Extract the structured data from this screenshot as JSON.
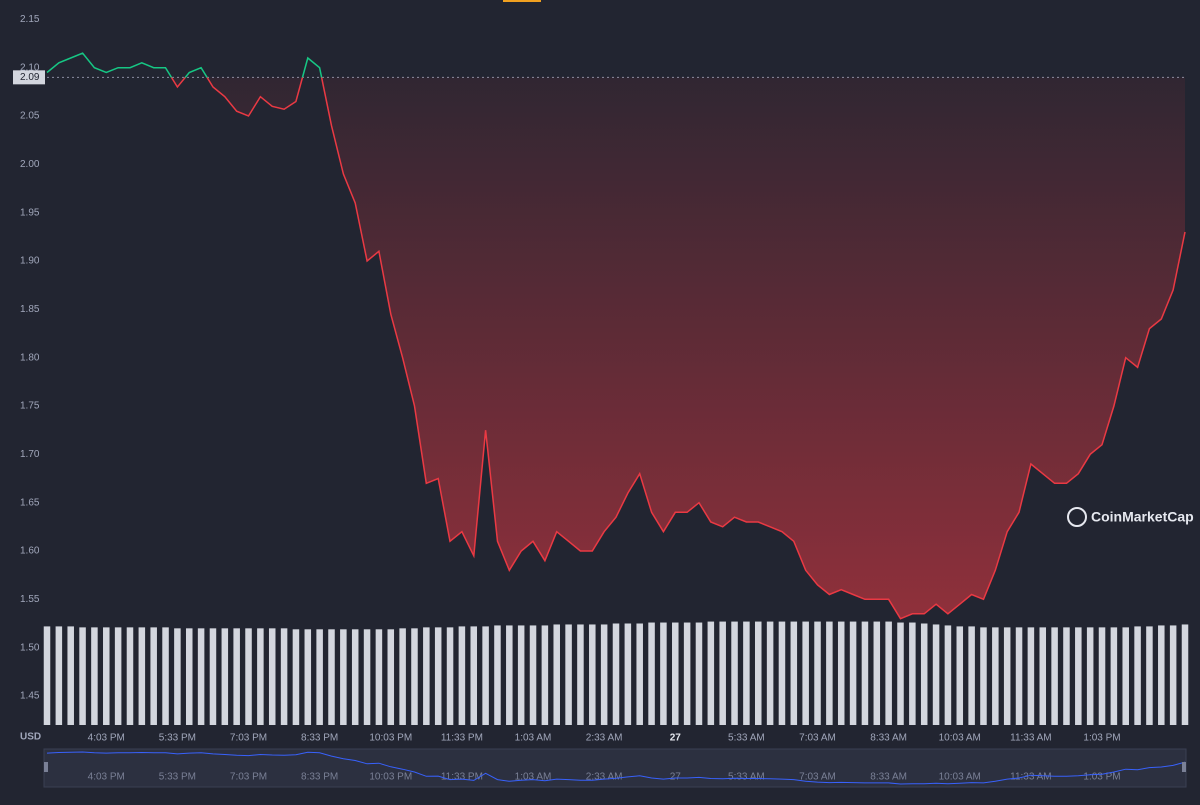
{
  "chart_data": {
    "type": "line",
    "categories": [
      null,
      null,
      null,
      null,
      null,
      "4:03 PM",
      null,
      null,
      null,
      null,
      null,
      "5:33 PM",
      null,
      null,
      null,
      null,
      null,
      "7:03 PM",
      null,
      null,
      null,
      null,
      null,
      "8:33 PM",
      null,
      null,
      null,
      null,
      null,
      "10:03 PM",
      null,
      null,
      null,
      null,
      null,
      "11:33 PM",
      null,
      null,
      null,
      null,
      null,
      "1:03 AM",
      null,
      null,
      null,
      null,
      null,
      "2:33 AM",
      null,
      null,
      null,
      null,
      null,
      "27",
      null,
      null,
      null,
      null,
      null,
      "5:33 AM",
      null,
      null,
      null,
      null,
      null,
      "7:03 AM",
      null,
      null,
      null,
      null,
      null,
      "8:33 AM",
      null,
      null,
      null,
      null,
      null,
      "10:03 AM",
      null,
      null,
      null,
      null,
      null,
      "11:33 AM",
      null,
      null,
      null,
      null,
      null,
      "1:03 PM",
      null,
      null,
      null,
      null,
      null,
      null,
      null
    ],
    "values": [
      2.095,
      2.105,
      2.11,
      2.115,
      2.1,
      2.095,
      2.1,
      2.1,
      2.105,
      2.1,
      2.1,
      2.08,
      2.095,
      2.1,
      2.08,
      2.07,
      2.055,
      2.05,
      2.07,
      2.06,
      2.057,
      2.065,
      2.11,
      2.1,
      2.04,
      1.99,
      1.96,
      1.9,
      1.91,
      1.845,
      1.8,
      1.75,
      1.67,
      1.675,
      1.61,
      1.62,
      1.595,
      1.725,
      1.61,
      1.58,
      1.6,
      1.61,
      1.59,
      1.62,
      1.61,
      1.6,
      1.6,
      1.62,
      1.635,
      1.66,
      1.68,
      1.64,
      1.62,
      1.64,
      1.64,
      1.65,
      1.63,
      1.625,
      1.635,
      1.63,
      1.63,
      1.625,
      1.62,
      1.61,
      1.58,
      1.565,
      1.555,
      1.56,
      1.555,
      1.55,
      1.55,
      1.55,
      1.53,
      1.535,
      1.535,
      1.545,
      1.535,
      1.545,
      1.555,
      1.55,
      1.58,
      1.62,
      1.64,
      1.69,
      1.68,
      1.67,
      1.67,
      1.68,
      1.7,
      1.71,
      1.75,
      1.8,
      1.79,
      1.83,
      1.84,
      1.87,
      1.93
    ],
    "volume": [
      1.522,
      1.522,
      1.522,
      1.521,
      1.521,
      1.521,
      1.521,
      1.521,
      1.521,
      1.521,
      1.521,
      1.52,
      1.52,
      1.52,
      1.52,
      1.52,
      1.52,
      1.52,
      1.52,
      1.52,
      1.52,
      1.519,
      1.519,
      1.519,
      1.519,
      1.519,
      1.519,
      1.519,
      1.519,
      1.519,
      1.52,
      1.52,
      1.521,
      1.521,
      1.521,
      1.522,
      1.522,
      1.522,
      1.523,
      1.523,
      1.523,
      1.523,
      1.523,
      1.524,
      1.524,
      1.524,
      1.524,
      1.524,
      1.525,
      1.525,
      1.525,
      1.526,
      1.526,
      1.526,
      1.526,
      1.526,
      1.527,
      1.527,
      1.527,
      1.527,
      1.527,
      1.527,
      1.527,
      1.527,
      1.527,
      1.527,
      1.527,
      1.527,
      1.527,
      1.527,
      1.527,
      1.527,
      1.526,
      1.526,
      1.525,
      1.524,
      1.523,
      1.522,
      1.522,
      1.521,
      1.521,
      1.521,
      1.521,
      1.521,
      1.521,
      1.521,
      1.521,
      1.521,
      1.521,
      1.521,
      1.521,
      1.521,
      1.522,
      1.522,
      1.523,
      1.523,
      1.524
    ],
    "reference": 2.09,
    "ylim": [
      1.42,
      2.17
    ],
    "yticks": [
      1.45,
      {
        "value": 1.5,
        "label": "1.50"
      },
      1.55,
      {
        "value": 1.6,
        "label": "1.60"
      },
      1.65,
      {
        "value": 1.7,
        "label": "1.70"
      },
      1.75,
      {
        "value": 1.8,
        "label": "1.80"
      },
      1.85,
      {
        "value": 1.9,
        "label": "1.90"
      },
      1.95,
      {
        "value": 2,
        "label": "2.00"
      },
      2.05,
      {
        "value": 2.1,
        "label": "2.10"
      },
      2.15
    ],
    "up_color": "#16c784",
    "down_color": "#ea3943",
    "volume_color": "#d3d6de",
    "navigator_color": "#3861fb",
    "currency": "USD",
    "watermark": "CoinMarketCap"
  }
}
